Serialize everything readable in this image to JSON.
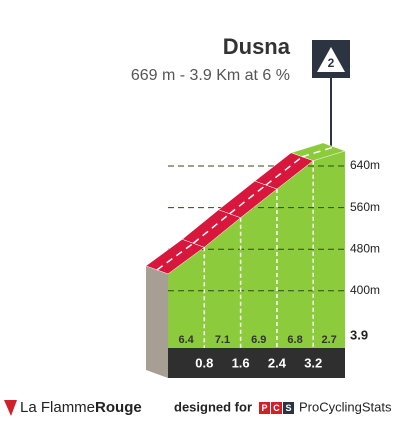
{
  "chart_data": {
    "type": "climb-profile",
    "title": "Dusna",
    "subtitle": "669 m - 3.9 Km at 6 %",
    "category": "2",
    "summit": 669,
    "x": [
      0.8,
      1.6,
      2.4,
      3.2,
      3.9
    ],
    "gradients": [
      6.4,
      7.1,
      6.9,
      6.8,
      2.7
    ],
    "ylim": [
      290,
      690
    ],
    "yticks": [
      {
        "value": 400,
        "label": "400m"
      },
      {
        "value": 480,
        "label": "480m"
      },
      {
        "value": 560,
        "label": "560m"
      },
      {
        "value": 640,
        "label": "640m"
      }
    ]
  },
  "footer": {
    "brand_1": "La Flamme",
    "brand_2": "Rouge",
    "designed": "designed for",
    "pcs_logo": [
      "P",
      "C",
      "S"
    ],
    "pcs": "ProCyclingStats"
  }
}
